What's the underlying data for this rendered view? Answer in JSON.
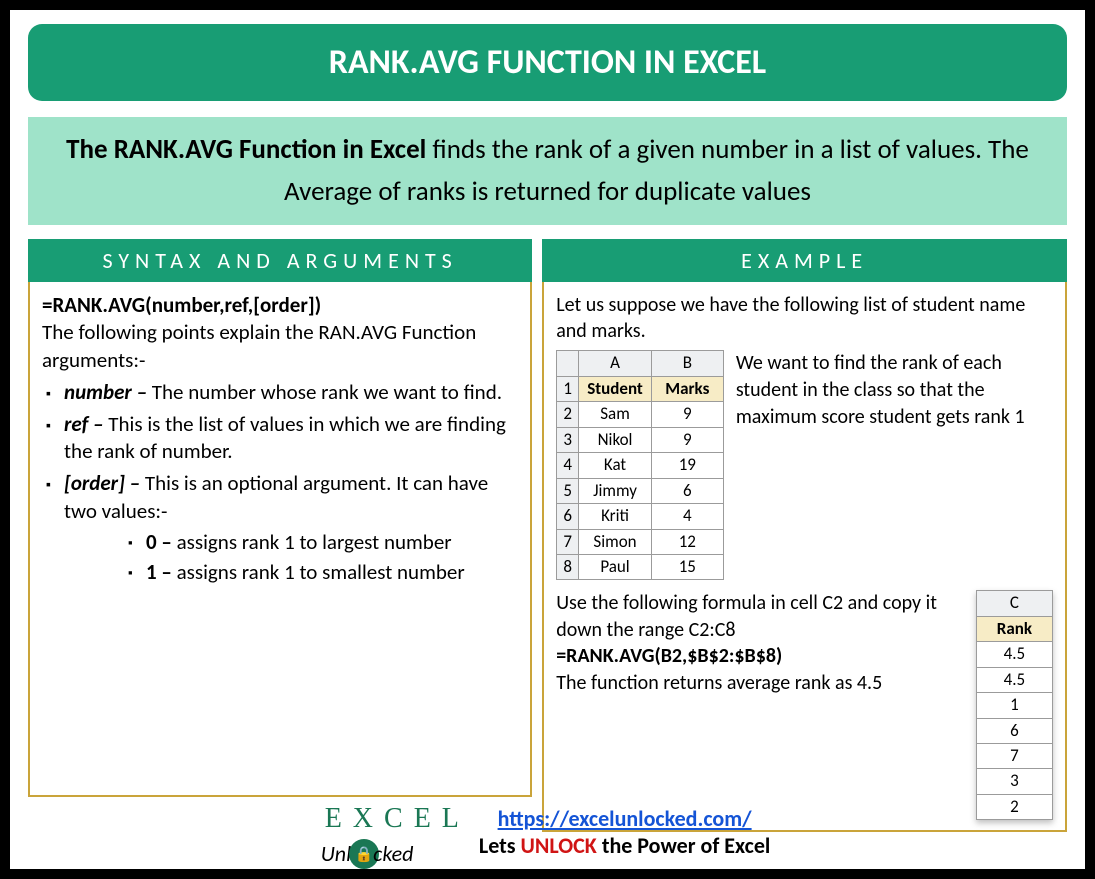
{
  "title": "RANK.AVG FUNCTION IN EXCEL",
  "description": {
    "lead": "The RANK.AVG Function in Excel",
    "rest": " finds the rank of a given number in a list of values. The Average of ranks is returned for duplicate values"
  },
  "syntax": {
    "header": "SYNTAX AND ARGUMENTS",
    "formula": "=RANK.AVG(number,ref,[order])",
    "intro": "The following points explain the RAN.AVG Function arguments:-",
    "args": [
      {
        "name": "number –",
        "desc": " The number whose rank we want to find."
      },
      {
        "name": "ref –",
        "desc": " This is the list of values in which we are finding the rank of number."
      },
      {
        "name": "[order] –",
        "desc": " This is an optional argument. It can have two values:-"
      }
    ],
    "sub": [
      {
        "key": "0 –",
        "desc": " assigns rank 1 to largest number"
      },
      {
        "key": "1 –",
        "desc": " assigns rank 1 to smallest number"
      }
    ]
  },
  "example": {
    "header": "EXAMPLE",
    "intro": "Let us suppose we have the following list of student name and marks.",
    "side_text": "We want to find the rank of each student in the class so that the maximum score student gets rank 1",
    "table": {
      "colA": "A",
      "colB": "B",
      "hdrA": "Student",
      "hdrB": "Marks",
      "rows": [
        {
          "n": "1",
          "a": "Student",
          "b": "Marks",
          "hdr": true
        },
        {
          "n": "2",
          "a": "Sam",
          "b": "9"
        },
        {
          "n": "3",
          "a": "Nikol",
          "b": "9"
        },
        {
          "n": "4",
          "a": "Kat",
          "b": "19"
        },
        {
          "n": "5",
          "a": "Jimmy",
          "b": "6"
        },
        {
          "n": "6",
          "a": "Kriti",
          "b": "4"
        },
        {
          "n": "7",
          "a": "Simon",
          "b": "12"
        },
        {
          "n": "8",
          "a": "Paul",
          "b": "15"
        }
      ]
    },
    "bottom": {
      "line1": "Use the following formula in cell C2 and copy it down the range C2:C8",
      "formula": "=RANK.AVG(B2,$B$2:$B$8)",
      "line2": "The function returns average rank as 4.5"
    },
    "rank_table": {
      "colC": "C",
      "hdr": "Rank",
      "vals": [
        "4.5",
        "4.5",
        "1",
        "6",
        "7",
        "3",
        "2"
      ]
    }
  },
  "footer": {
    "logo_top": "E X C E L",
    "logo_bottom_pre": "Unl",
    "logo_bottom_post": "cked",
    "url": "https://excelunlocked.com/",
    "tag_pre": "Lets ",
    "tag_unlock": "UNLOCK",
    "tag_post": " the Power of Excel"
  },
  "colors": {
    "primary": "#189d74",
    "light": "#9fe3c9",
    "border": "#caa43a",
    "link": "#1454d6",
    "unlock": "#d01414"
  }
}
